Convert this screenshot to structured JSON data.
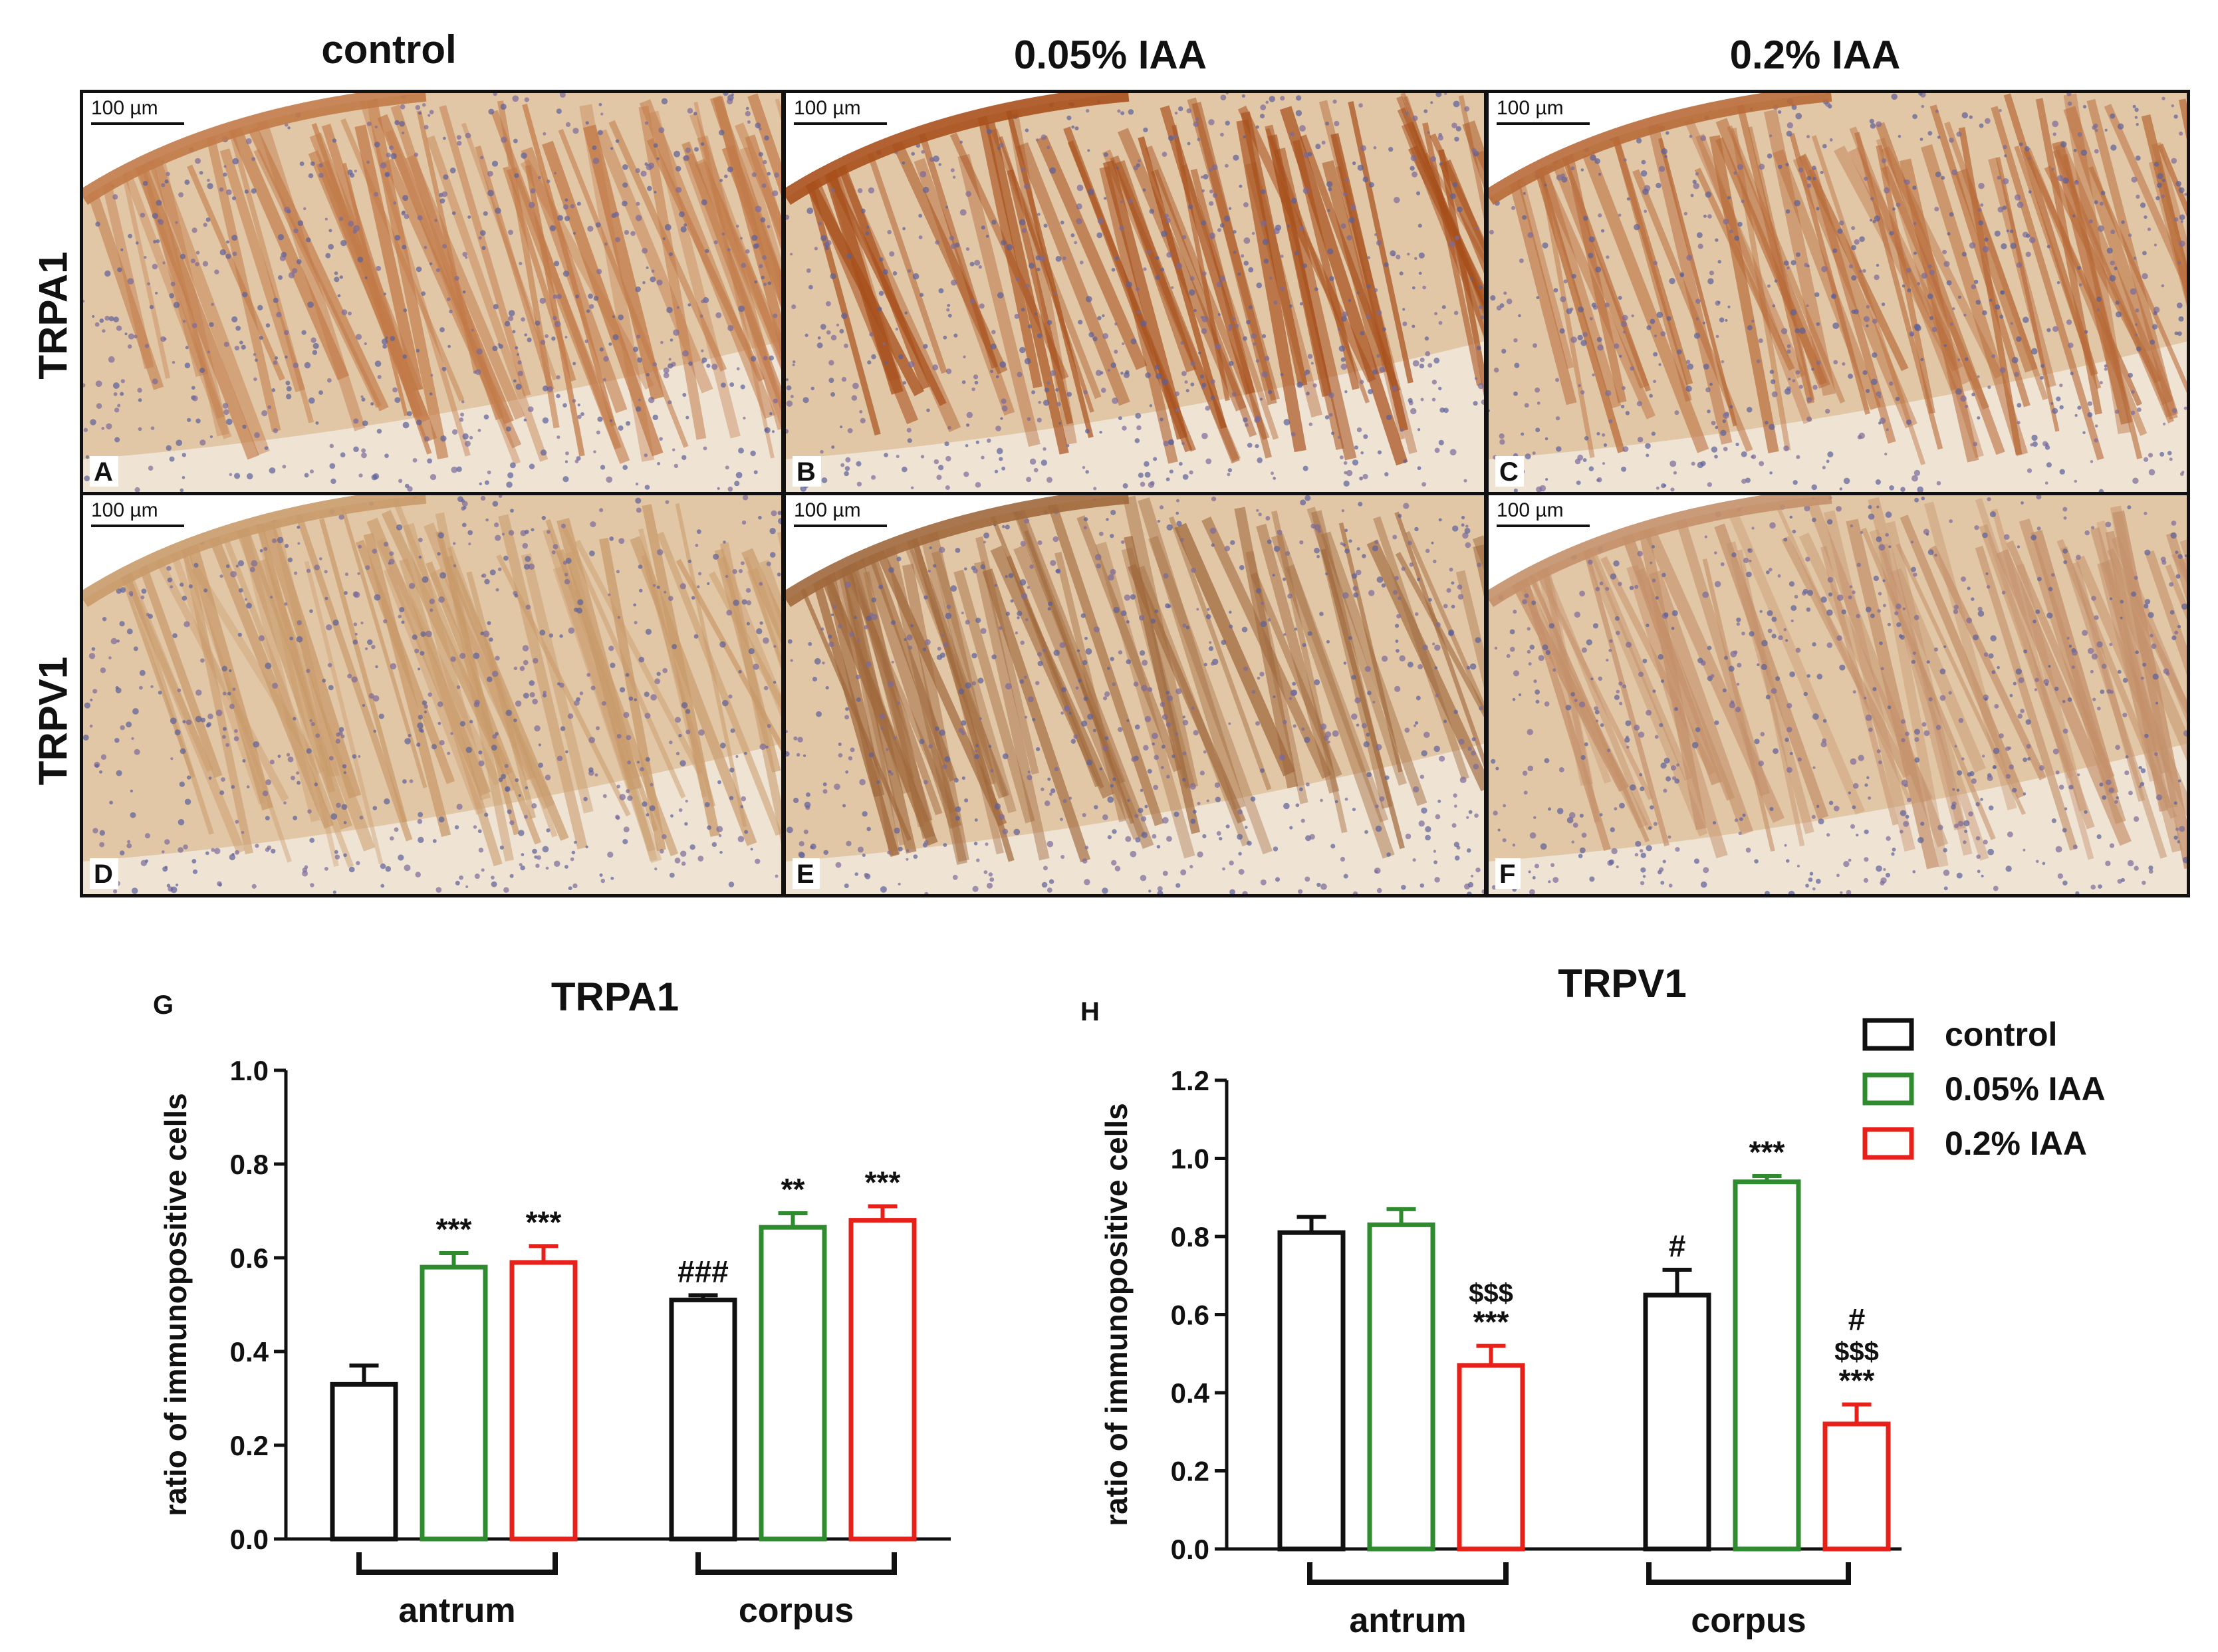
{
  "micrographs": {
    "columns": [
      "control",
      "0.05% IAA",
      "0.2% IAA"
    ],
    "rows": [
      "TRPA1",
      "TRPV1"
    ],
    "scale_bar": "100 µm",
    "panels": [
      {
        "letter": "A",
        "row": 0,
        "col": 0,
        "stain": "#c27a48"
      },
      {
        "letter": "B",
        "row": 0,
        "col": 1,
        "stain": "#a8501c"
      },
      {
        "letter": "C",
        "row": 0,
        "col": 2,
        "stain": "#b86a38"
      },
      {
        "letter": "D",
        "row": 1,
        "col": 0,
        "stain": "#c99a6a"
      },
      {
        "letter": "E",
        "row": 1,
        "col": 1,
        "stain": "#a0683c"
      },
      {
        "letter": "F",
        "row": 1,
        "col": 2,
        "stain": "#c4906a"
      }
    ]
  },
  "legend": [
    {
      "label": "control",
      "color": "#111111"
    },
    {
      "label": "0.05% IAA",
      "color": "#2e8b2e"
    },
    {
      "label": "0.2% IAA",
      "color": "#e8201a"
    }
  ],
  "chart_data": [
    {
      "panel": "G",
      "type": "bar",
      "title": "TRPA1",
      "ylabel": "ratio of immunopositive cells",
      "ylim": [
        0,
        1.0
      ],
      "yticks": [
        "0.0",
        "0.2",
        "0.4",
        "0.6",
        "0.8",
        "1.0"
      ],
      "groups": [
        "antrum",
        "corpus"
      ],
      "series": [
        {
          "name": "control",
          "values": [
            0.33,
            0.51
          ],
          "errors": [
            0.04,
            0.01
          ],
          "annotations": [
            "",
            "###"
          ]
        },
        {
          "name": "0.05% IAA",
          "values": [
            0.58,
            0.665
          ],
          "errors": [
            0.03,
            0.03
          ],
          "annotations": [
            "***",
            "**"
          ]
        },
        {
          "name": "0.2% IAA",
          "values": [
            0.59,
            0.68
          ],
          "errors": [
            0.035,
            0.03
          ],
          "annotations": [
            "***",
            "***"
          ]
        }
      ]
    },
    {
      "panel": "H",
      "type": "bar",
      "title": "TRPV1",
      "ylabel": "ratio of immunopositive cells",
      "ylim": [
        0,
        1.2
      ],
      "yticks": [
        "0.0",
        "0.2",
        "0.4",
        "0.6",
        "0.8",
        "1.0",
        "1.2"
      ],
      "groups": [
        "antrum",
        "corpus"
      ],
      "series": [
        {
          "name": "control",
          "values": [
            0.81,
            0.65
          ],
          "errors": [
            0.04,
            0.065
          ],
          "annotations": [
            "",
            "#"
          ]
        },
        {
          "name": "0.05% IAA",
          "values": [
            0.83,
            0.94
          ],
          "errors": [
            0.04,
            0.015
          ],
          "annotations": [
            "",
            "***"
          ]
        },
        {
          "name": "0.2% IAA",
          "values": [
            0.47,
            0.32
          ],
          "errors": [
            0.05,
            0.05
          ],
          "annotations": [
            "$$$\n***",
            "#\n$$$\n***"
          ]
        }
      ]
    }
  ]
}
